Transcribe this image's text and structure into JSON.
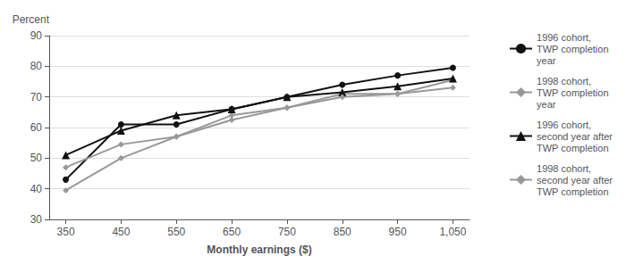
{
  "chart_data": {
    "type": "line",
    "x": [
      350,
      450,
      550,
      650,
      750,
      850,
      950,
      1050
    ],
    "series": [
      {
        "name": "1996 cohort,\nTWP completion\nyear",
        "color": "#111111",
        "marker": "circle",
        "values": [
          43.0,
          61.0,
          61.0,
          66.0,
          70.0,
          74.0,
          77.0,
          79.5
        ]
      },
      {
        "name": "1998 cohort,\nTWP completion\nyear",
        "color": "#999999",
        "marker": "diamond",
        "values": [
          47.0,
          54.5,
          57.0,
          64.0,
          66.5,
          71.0,
          71.0,
          75.5
        ]
      },
      {
        "name": "1996 cohort,\nsecond year after\nTWP completion",
        "color": "#111111",
        "marker": "triangle",
        "values": [
          51.0,
          59.0,
          64.0,
          66.0,
          70.0,
          71.5,
          73.5,
          76.0
        ]
      },
      {
        "name": "1998 cohort,\nsecond year after\nTWP completion",
        "color": "#999999",
        "marker": "diamond",
        "values": [
          39.5,
          50.0,
          57.0,
          62.5,
          66.5,
          70.0,
          71.0,
          73.0
        ]
      }
    ],
    "xlabel": "Monthly earnings ($)",
    "ylabel": "Percent",
    "xlim": [
      320,
      1080
    ],
    "xticks": [
      350,
      450,
      550,
      650,
      750,
      850,
      950,
      {
        "value": 1050,
        "label": "1,050"
      }
    ],
    "ylim": [
      30,
      90
    ],
    "yticks": [
      30,
      40,
      50,
      60,
      70,
      80,
      90
    ],
    "grid": true,
    "legend": "right"
  }
}
